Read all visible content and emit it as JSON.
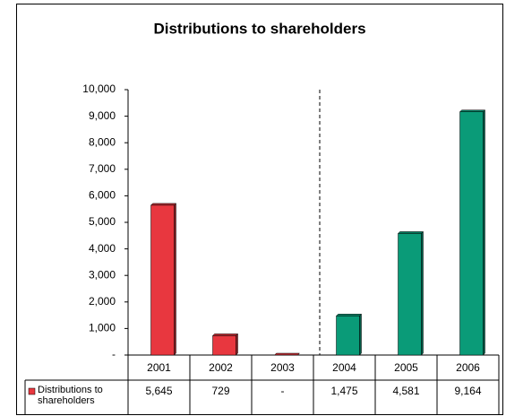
{
  "chart_data": {
    "type": "bar",
    "title": "Distributions to shareholders",
    "categories": [
      "2001",
      "2002",
      "2003",
      "2004",
      "2005",
      "2006"
    ],
    "series": [
      {
        "name": "Distributions to shareholders",
        "color": "#e8373f",
        "colors": [
          "#e8373f",
          "#e8373f",
          "#e8373f",
          "#0a9b78",
          "#0a9b78",
          "#0a9b78"
        ],
        "values": [
          5645,
          729,
          0,
          1475,
          4581,
          9164
        ],
        "value_labels": [
          "5,645",
          "729",
          "-",
          "1,475",
          "4,581",
          "9,164"
        ]
      }
    ],
    "ylim": [
      0,
      10000
    ],
    "yticks": [
      {
        "value": 0,
        "label": "-"
      },
      {
        "value": 1000,
        "label": "1,000"
      },
      {
        "value": 2000,
        "label": "2,000"
      },
      {
        "value": 3000,
        "label": "3,000"
      },
      {
        "value": 4000,
        "label": "4,000"
      },
      {
        "value": 5000,
        "label": "5,000"
      },
      {
        "value": 6000,
        "label": "6,000"
      },
      {
        "value": 7000,
        "label": "7,000"
      },
      {
        "value": 8000,
        "label": "8,000"
      },
      {
        "value": 9000,
        "label": "9,000"
      },
      {
        "value": 10000,
        "label": "10,000"
      }
    ],
    "grid": false
  }
}
